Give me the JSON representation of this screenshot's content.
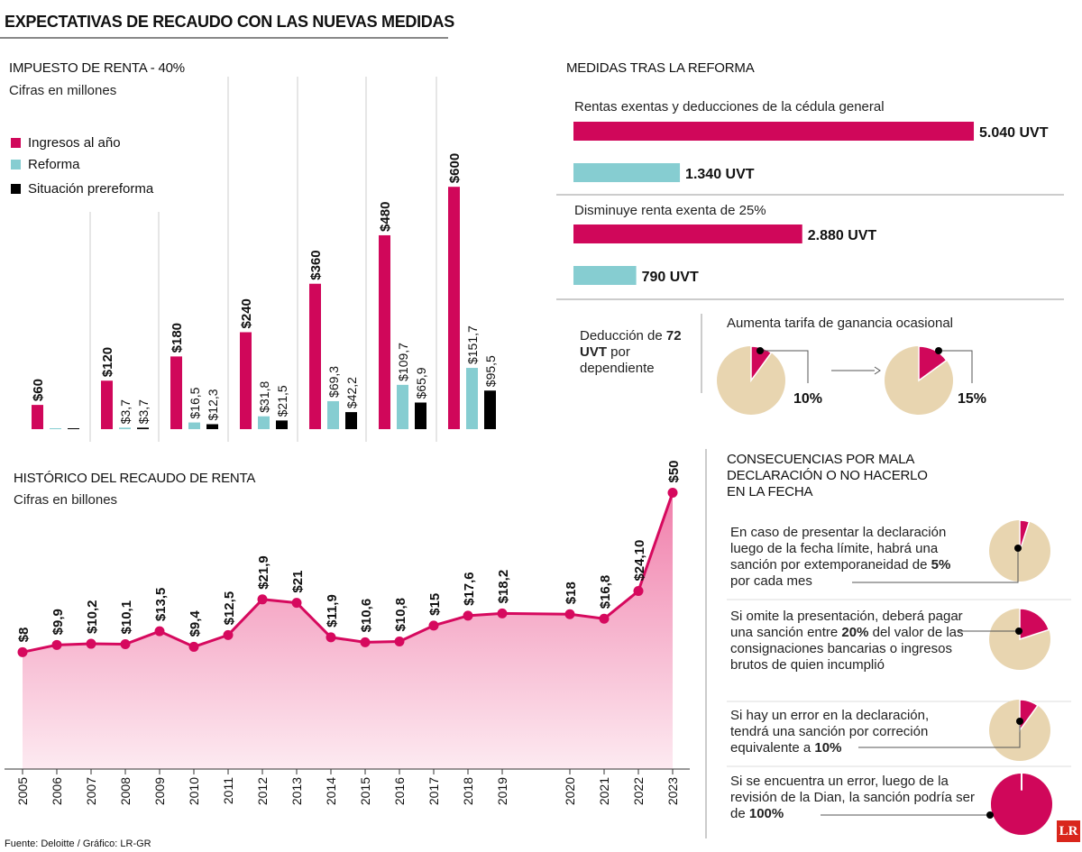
{
  "title": "EXPECTATIVAS DE RECAUDO CON LAS NUEVAS MEDIDAS",
  "renta": {
    "title": "IMPUESTO DE RENTA - 40%",
    "subtitle": "Cifras en millones",
    "legend": [
      {
        "label": "Ingresos al año",
        "color": "#d0075a"
      },
      {
        "label": "Reforma",
        "color": "#86cdd1"
      },
      {
        "label": "Situación prereforma",
        "color": "#000000"
      }
    ]
  },
  "historico": {
    "title": "HISTÓRICO DEL RECAUDO DE RENTA",
    "subtitle": "Cifras en billones"
  },
  "chart_data": [
    {
      "type": "bar",
      "title": "IMPUESTO DE RENTA - 40%",
      "subtitle": "Cifras en millones",
      "legend": "top-left",
      "series": [
        {
          "name": "Ingresos al año",
          "color": "#d0075a",
          "values": [
            60,
            120,
            180,
            240,
            360,
            480,
            600
          ],
          "labels": [
            "$60",
            "$120",
            "$180",
            "$240",
            "$360",
            "$480",
            "$600"
          ]
        },
        {
          "name": "Reforma",
          "color": "#86cdd1",
          "values": [
            0,
            3.7,
            16.5,
            31.8,
            69.3,
            109.7,
            151.7
          ],
          "labels": [
            "",
            "$3,7",
            "$16,5",
            "$31,8",
            "$69,3",
            "$109,7",
            "$151,7"
          ]
        },
        {
          "name": "Situación prereforma",
          "color": "#000000",
          "values": [
            0,
            3.7,
            12.3,
            21.5,
            42.2,
            65.9,
            95.5
          ],
          "labels": [
            "",
            "$3,7",
            "$12,3",
            "$21,5",
            "$42,2",
            "$65,9",
            "$95,5"
          ]
        }
      ]
    },
    {
      "type": "area",
      "title": "HISTÓRICO DEL RECAUDO DE RENTA",
      "subtitle": "Cifras en billones",
      "color": "#d6095e",
      "categories": [
        "2005",
        "2006",
        "2007",
        "2008",
        "2009",
        "2010",
        "2011",
        "2012",
        "2013",
        "2014",
        "2015",
        "2016",
        "2017",
        "2018",
        "2019",
        "2020",
        "2021",
        "2022",
        "2023"
      ],
      "values": [
        8,
        9.9,
        10.2,
        10.1,
        13.5,
        9.4,
        12.5,
        21.9,
        21,
        11.9,
        10.6,
        10.8,
        15,
        17.6,
        18.2,
        18,
        16.8,
        24.1,
        50
      ],
      "labels": [
        "$8",
        "$9,9",
        "$10,2",
        "$10,1",
        "$13,5",
        "$9,4",
        "$12,5",
        "$21,9",
        "$21",
        "$11,9",
        "$10,6",
        "$10,8",
        "$15",
        "$17,6",
        "$18,2",
        "$18",
        "$16,8",
        "$24,10",
        "$50"
      ],
      "grid": false
    },
    {
      "type": "bar",
      "orientation": "horizontal",
      "title": "MEDIDAS TRAS LA REFORMA",
      "groups": [
        {
          "label": "Rentas exentas y deducciones de la cédula general",
          "bars": [
            {
              "value": 5040,
              "label": "5.040 UVT",
              "color": "#d0075a"
            },
            {
              "value": 1340,
              "label": "1.340 UVT",
              "color": "#86cdd1"
            }
          ]
        },
        {
          "label": "Disminuye renta exenta de 25%",
          "bars": [
            {
              "value": 2880,
              "label": "2.880 UVT",
              "color": "#d0075a"
            },
            {
              "value": 790,
              "label": "790 UVT",
              "color": "#86cdd1"
            }
          ]
        }
      ]
    },
    {
      "type": "pie",
      "title": "Aumenta tarifa de ganancia ocasional",
      "pies": [
        {
          "value": 10,
          "label": "10%"
        },
        {
          "value": 15,
          "label": "15%"
        }
      ]
    },
    {
      "type": "pie",
      "title": "CONSECUENCIAS POR MALA DECLARACIÓN O NO HACERLO EN LA FECHA",
      "pies": [
        {
          "value": 5,
          "label": "5%"
        },
        {
          "value": 20,
          "label": "20%"
        },
        {
          "value": 10,
          "label": "10%"
        },
        {
          "value": 100,
          "label": "100%"
        }
      ]
    }
  ],
  "medidas": {
    "title": "MEDIDAS TRAS LA REFORMA",
    "deduccion": {
      "pre": "Deducción de ",
      "bold": "72 UVT",
      "post": " por dependiente"
    },
    "ganancia_title": "Aumenta tarifa de ganancia ocasional"
  },
  "consecuencias": {
    "title": "CONSECUENCIAS POR MALA DECLARACIÓN O NO HACERLO EN LA FECHA",
    "items": [
      {
        "pre": "En caso de presentar la declaración luego de la fecha límite, habrá una sanción por extemporaneidad de ",
        "bold": "5%",
        "post": " por cada mes"
      },
      {
        "pre": "Si omite la presentación, deberá pagar una sanción entre ",
        "bold": "20%",
        "post": " del valor de las consignaciones bancarias o ingresos brutos de quien incumplió"
      },
      {
        "pre": "Si hay un error en la declaración, tendrá una sanción por correción equivalente a ",
        "bold": "10%",
        "post": ""
      },
      {
        "pre": "Si se encuentra un error, luego de la revisión de la Dian, la sanción podría ser de ",
        "bold": "100%",
        "post": ""
      }
    ]
  },
  "colors": {
    "pink": "#d0075a",
    "teal": "#86cdd1",
    "beige": "#e8d5b0",
    "black": "#000000"
  },
  "footer": "Fuente: Deloitte / Gráfico: LR-GR",
  "logo": "LR"
}
